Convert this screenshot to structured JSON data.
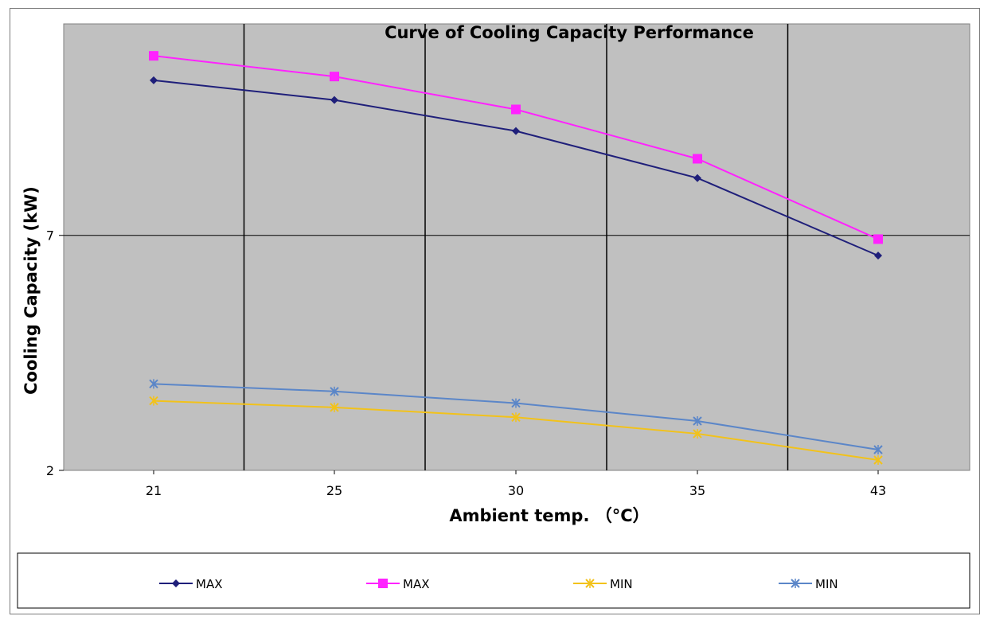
{
  "chart_data": {
    "type": "line",
    "title": "Curve of Cooling Capacity Performance",
    "xlabel": "Ambient temp. （°C）",
    "ylabel": "Cooling Capacity (kW)",
    "categories": [
      "21",
      "25",
      "30",
      "35",
      "43"
    ],
    "y_ticks": [
      "2",
      "7"
    ],
    "ylim": [
      2,
      11.5
    ],
    "grid": true,
    "legend_position": "bottom",
    "plot_background": "#c0c0c0",
    "series": [
      {
        "name": "MAX",
        "color": "#1f1f7a",
        "marker": "diamond",
        "values": [
          10.3,
          9.88,
          9.22,
          8.22,
          6.57
        ]
      },
      {
        "name": "MAX",
        "color": "#ff22ff",
        "marker": "square",
        "values": [
          10.82,
          10.38,
          9.68,
          8.63,
          6.92
        ]
      },
      {
        "name": "MIN",
        "color": "#f2c21a",
        "marker": "x",
        "values": [
          3.48,
          3.34,
          3.13,
          2.78,
          2.22
        ]
      },
      {
        "name": "MIN",
        "color": "#5b86c8",
        "marker": "x",
        "values": [
          3.84,
          3.68,
          3.43,
          3.05,
          2.44
        ]
      }
    ]
  }
}
